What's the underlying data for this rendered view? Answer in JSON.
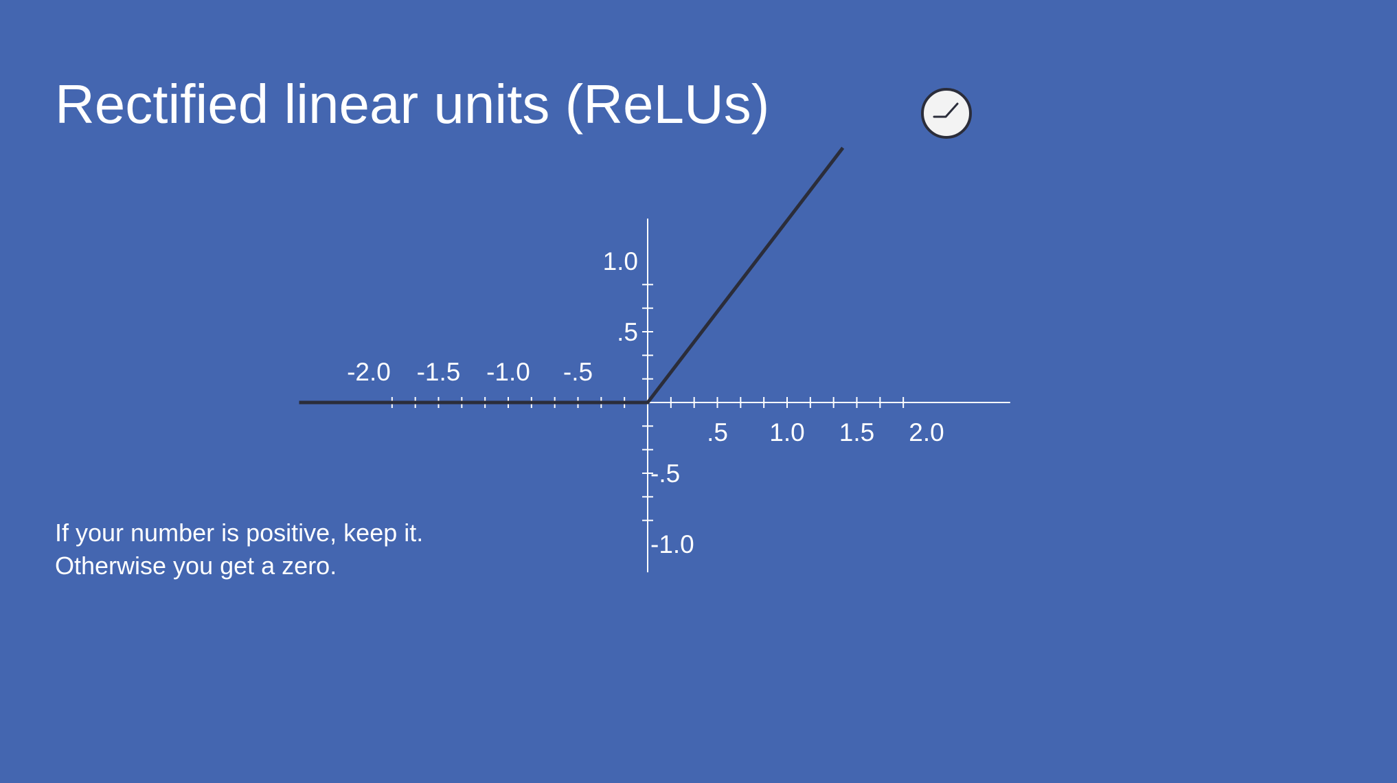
{
  "slide": {
    "title": "Rectified linear units (ReLUs)",
    "caption_lines": [
      "If your number is positive, keep it.",
      "Otherwise you get a zero."
    ],
    "background_color": "#4466b0",
    "text_color": "#ffffff",
    "icon": "relu-curve-icon"
  },
  "chart_data": {
    "type": "line",
    "title": "",
    "xlabel": "",
    "ylabel": "",
    "series": [
      {
        "color": "#2b2d3a",
        "x": [
          -2.5,
          0,
          1.4
        ],
        "y": [
          0,
          0,
          1.8
        ]
      }
    ],
    "xlim": [
      -2.5,
      2.6
    ],
    "ylim": [
      -1.2,
      1.3
    ],
    "x_tick_labels": [
      {
        "value": -2.0,
        "label": "-2.0"
      },
      {
        "value": -1.5,
        "label": "-1.5"
      },
      {
        "value": -1.0,
        "label": "-1.0"
      },
      {
        "value": -0.5,
        "label": "-.5"
      },
      {
        "value": 0.5,
        "label": ".5"
      },
      {
        "value": 1.0,
        "label": "1.0"
      },
      {
        "value": 1.5,
        "label": "1.5"
      },
      {
        "value": 2.0,
        "label": "2.0"
      }
    ],
    "y_tick_labels": [
      {
        "value": 1.0,
        "label": "1.0"
      },
      {
        "value": 0.5,
        "label": ".5"
      },
      {
        "value": -0.5,
        "label": "-.5"
      },
      {
        "value": -1.0,
        "label": "-1.0"
      }
    ],
    "minor_tick_step": 0.166667,
    "axis_color": "#ffffff",
    "grid": false,
    "legend": "none"
  }
}
